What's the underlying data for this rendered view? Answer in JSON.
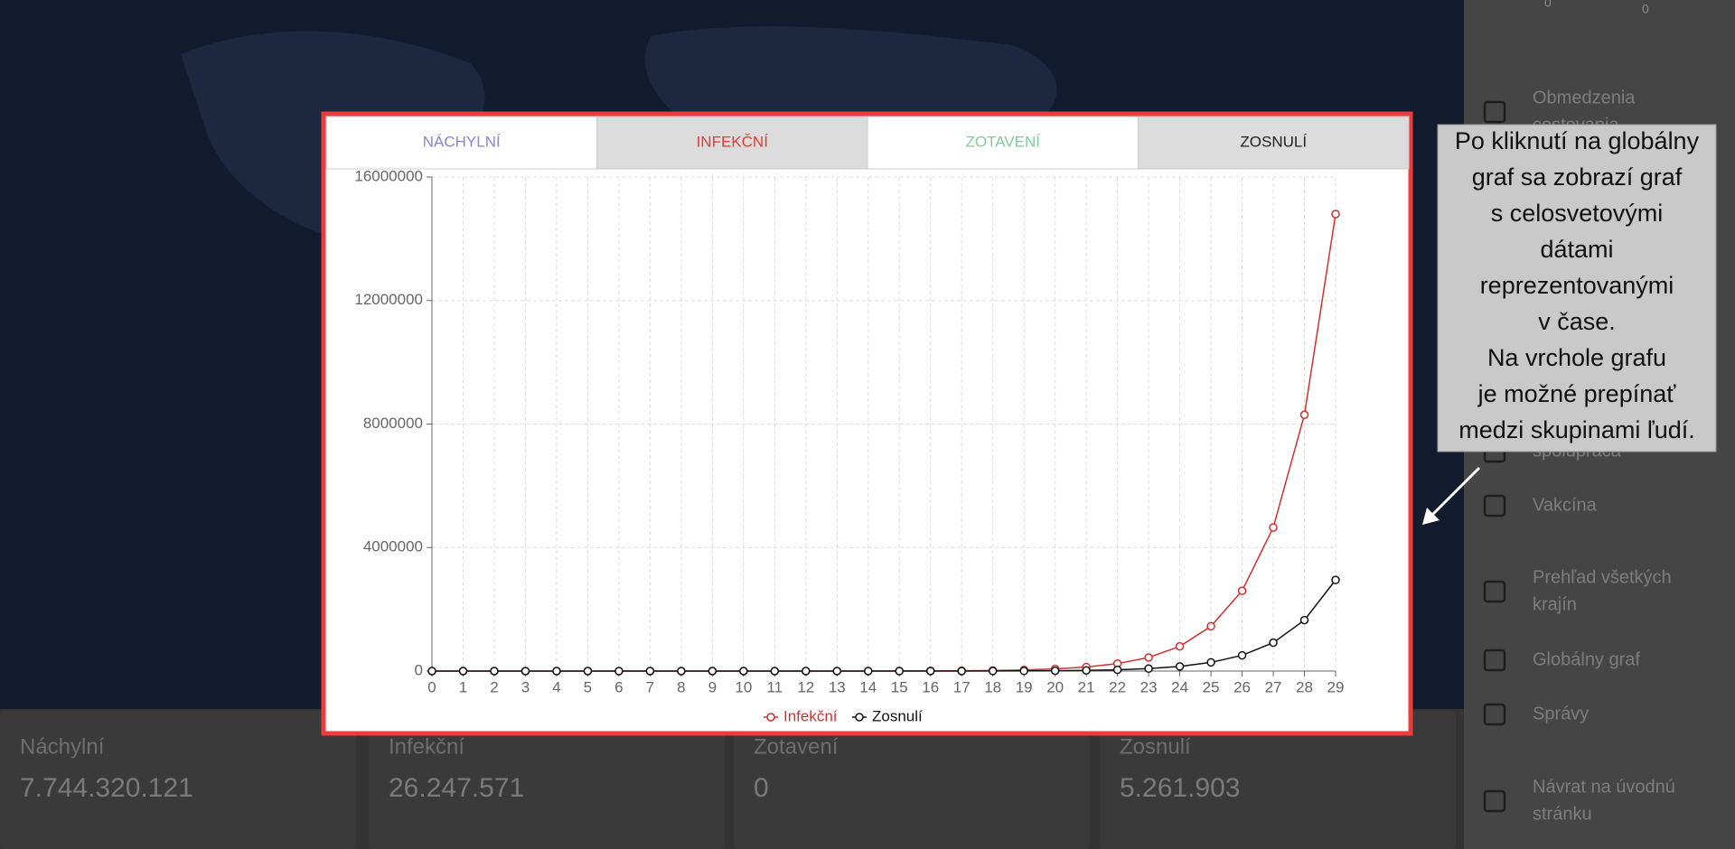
{
  "sidebar": {
    "top_values": [
      "0",
      "0"
    ],
    "items": [
      {
        "lines": [
          "Obmedzenia",
          "cestovania"
        ]
      },
      {
        "lines": [
          "spolupráca"
        ]
      },
      {
        "lines": [
          "Vakcína"
        ]
      },
      {
        "lines": [
          "Prehľad všetkých",
          "krajín"
        ]
      },
      {
        "lines": [
          "Globálny graf"
        ]
      },
      {
        "lines": [
          "Správy"
        ]
      },
      {
        "lines": [
          "Návrat na úvodnú",
          "stránku"
        ]
      }
    ]
  },
  "stats": [
    {
      "label": "Náchylní",
      "value": "7.744.320.121"
    },
    {
      "label": "Infekční",
      "value": "26.247.571"
    },
    {
      "label": "Zotavení",
      "value": "0"
    },
    {
      "label": "Zosnulí",
      "value": "5.261.903"
    }
  ],
  "modal": {
    "tabs": [
      {
        "label": "NÁCHYLNÍ",
        "color": "#8884d8"
      },
      {
        "label": "INFEKČNÍ",
        "color": "#e53935"
      },
      {
        "label": "ZOTAVENÍ",
        "color": "#82ca9d"
      },
      {
        "label": "ZOSNULÍ",
        "color": "#222222"
      }
    ],
    "chart_data": {
      "type": "line",
      "x": [
        0,
        1,
        2,
        3,
        4,
        5,
        6,
        7,
        8,
        9,
        10,
        11,
        12,
        13,
        14,
        15,
        16,
        17,
        18,
        19,
        20,
        21,
        22,
        23,
        24,
        25,
        26,
        27,
        28,
        29
      ],
      "xlim": [
        0,
        29
      ],
      "ylim": [
        0,
        16000000
      ],
      "yticks": [
        0,
        4000000,
        8000000,
        12000000,
        16000000
      ],
      "grid": true,
      "series": [
        {
          "name": "Infekční",
          "color": "#d32f2f",
          "values": [
            1,
            1,
            1,
            2,
            4,
            8,
            15,
            27,
            50,
            90,
            160,
            300,
            550,
            1000,
            1800,
            3300,
            6000,
            11000,
            20000,
            38000,
            70000,
            130000,
            240000,
            440000,
            800000,
            1450000,
            2600000,
            4650000,
            8300000,
            14800000
          ]
        },
        {
          "name": "Zosnulí",
          "color": "#111111",
          "values": [
            0,
            0,
            0,
            0,
            0,
            0,
            1,
            3,
            5,
            9,
            16,
            30,
            55,
            100,
            180,
            330,
            600,
            1100,
            2700,
            5500,
            11000,
            22000,
            42000,
            80000,
            150000,
            280000,
            510000,
            920000,
            1650000,
            2950000
          ]
        }
      ]
    }
  },
  "annotation": {
    "lines": [
      "Po kliknutí na globálny",
      "graf sa zobrazí graf",
      "s celosvetovými",
      "dátami",
      "reprezentovanými",
      "v čase.",
      "Na vrchole grafu",
      "je možné prepínať",
      "medzi skupinami ľudí."
    ]
  }
}
